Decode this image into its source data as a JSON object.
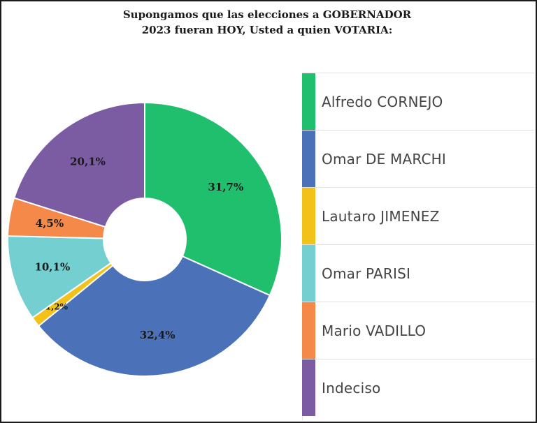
{
  "title": {
    "line1": "Supongamos que las elecciones a GOBERNADOR",
    "line2": "2023 fueran HOY, Usted a quien VOTARIA:"
  },
  "chart_data": {
    "type": "pie",
    "title": "Supongamos que las elecciones a GOBERNADOR 2023 fueran HOY, Usted a quien VOTARIA:",
    "donut": true,
    "legend_position": "right",
    "slices": [
      {
        "name": "Alfredo CORNEJO",
        "value": 31.7,
        "label": "31,7%",
        "color": "#1fbf6e"
      },
      {
        "name": "Omar DE MARCHI",
        "value": 32.4,
        "label": "32,4%",
        "color": "#4b72b8"
      },
      {
        "name": "Lautaro JIMENEZ",
        "value": 1.2,
        "label": "1,2%",
        "color": "#f2c21a"
      },
      {
        "name": "Omar PARISI",
        "value": 10.1,
        "label": "10,1%",
        "color": "#74cfd1"
      },
      {
        "name": "Mario VADILLO",
        "value": 4.5,
        "label": "4,5%",
        "color": "#f4894a"
      },
      {
        "name": "Indeciso",
        "value": 20.1,
        "label": "20,1%",
        "color": "#7b5ca3"
      }
    ]
  }
}
